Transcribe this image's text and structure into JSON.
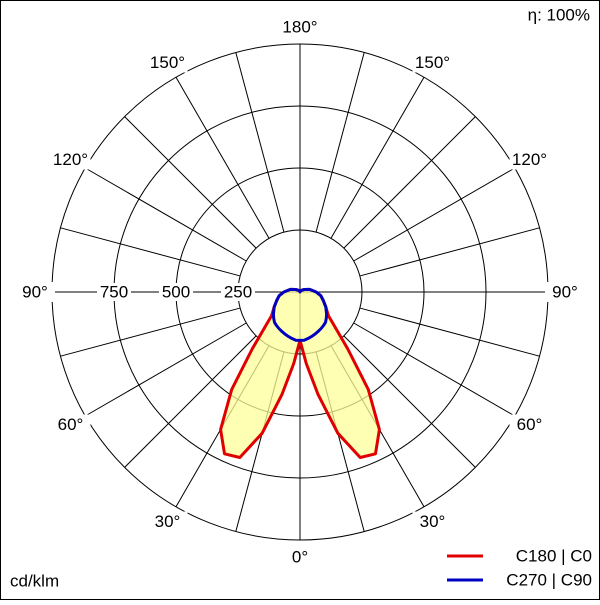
{
  "chart_data": {
    "type": "polar",
    "efficiency": "η: 100%",
    "unit": "cd/klm",
    "angles": [
      0,
      5,
      10,
      15,
      20,
      25,
      30,
      35,
      40,
      45,
      50,
      60,
      70,
      80,
      90,
      105,
      120,
      135,
      150,
      165,
      180
    ],
    "series": [
      {
        "name": "C180 | C0",
        "color": "#e00000",
        "fill": "#ffff99",
        "values": [
          195,
          290,
          420,
          590,
          710,
          720,
          640,
          480,
          300,
          200,
          150,
          120,
          100,
          85,
          65,
          40,
          20,
          10,
          5,
          2,
          0
        ]
      },
      {
        "name": "C270 | C90",
        "color": "#0000c0",
        "values": [
          195,
          195,
          190,
          185,
          180,
          175,
          170,
          165,
          160,
          150,
          140,
          120,
          100,
          85,
          65,
          40,
          20,
          10,
          5,
          2,
          0
        ]
      }
    ],
    "rlim": [
      0,
      1000
    ],
    "rticks": [
      250,
      500,
      750
    ],
    "angle_ticks": [
      {
        "value": 0,
        "label": "0°"
      },
      {
        "value": 30,
        "label": "30°"
      },
      {
        "value": 60,
        "label": "60°"
      },
      {
        "value": 90,
        "label": "90°"
      },
      {
        "value": 120,
        "label": "120°"
      },
      {
        "value": 150,
        "label": "150°"
      },
      {
        "value": 180,
        "label": "180°"
      }
    ]
  }
}
